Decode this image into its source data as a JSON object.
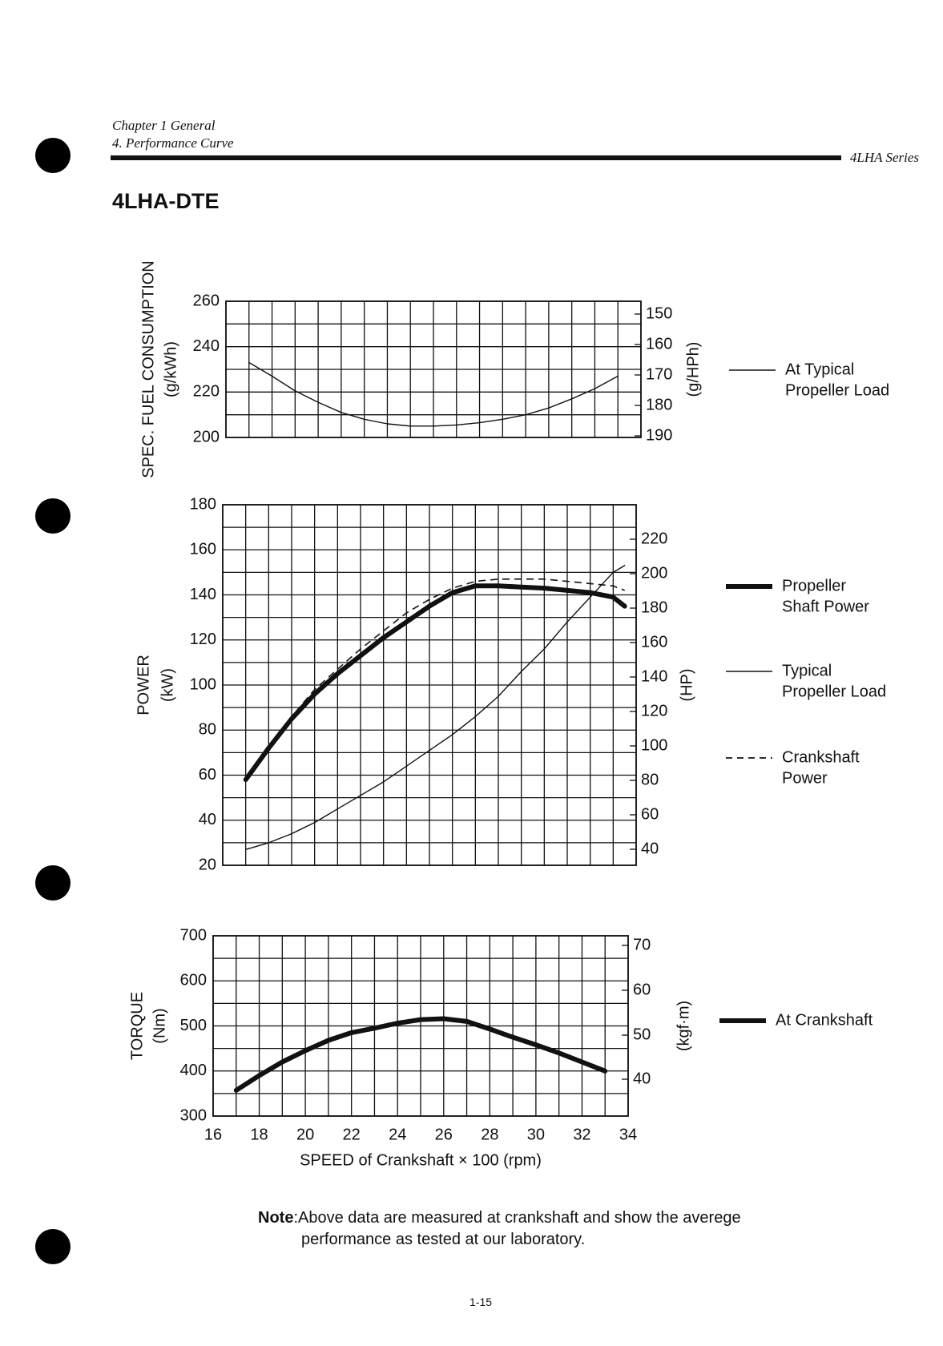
{
  "header": {
    "chapter": "Chapter 1 General",
    "section": "4. Performance Curve",
    "series": "4LHA Series"
  },
  "model": "4LHA-DTE",
  "note": {
    "label": "Note",
    "line1": ":Above data are measured at crankshaft and show the averege",
    "line2": "performance as tested at our laboratory."
  },
  "page_number": "1-15",
  "chart_data": [
    {
      "type": "line",
      "ylabel": "SPEC. FUEL CONSUMPTION",
      "ylabel_unit": "(g/kWh)",
      "y2label": "(g/HPh)",
      "ylim": [
        200,
        260
      ],
      "yticks": [
        "200",
        "220",
        "240",
        "260"
      ],
      "y2ticks": [
        "150",
        "160",
        "170",
        "180",
        "190"
      ],
      "xlim": [
        16,
        34
      ],
      "grid": true,
      "legend": "right",
      "series": [
        {
          "name": "At Typical Propeller Load",
          "x": [
            17.0,
            18.0,
            19.0,
            20.0,
            21.0,
            22.0,
            23.0,
            24.0,
            25.0,
            26.0,
            27.0,
            28.0,
            29.0,
            30.0,
            31.0,
            32.0,
            33.0
          ],
          "values": [
            233,
            227,
            220.5,
            215.5,
            211,
            208,
            206,
            205,
            205,
            205.5,
            206.5,
            208,
            210,
            213,
            217,
            221.5,
            227
          ]
        }
      ]
    },
    {
      "type": "line",
      "ylabel": "POWER",
      "ylabel_unit": "(kW)",
      "y2label": "(HP)",
      "ylim": [
        20,
        180
      ],
      "yticks": [
        "20",
        "40",
        "60",
        "80",
        "100",
        "120",
        "140",
        "160",
        "180"
      ],
      "y2ticks": [
        "40",
        "60",
        "80",
        "100",
        "120",
        "140",
        "160",
        "180",
        "200",
        "220"
      ],
      "xlim": [
        16,
        34
      ],
      "grid": true,
      "legend": "right",
      "series": [
        {
          "name": "Propeller Shaft Power",
          "style": "thick",
          "x": [
            17.0,
            18.0,
            19.0,
            20.0,
            21.0,
            22.0,
            23.0,
            24.0,
            25.0,
            26.0,
            27.0,
            28.0,
            29.0,
            30.0,
            31.0,
            32.0,
            33.0,
            33.5
          ],
          "values": [
            58,
            72,
            85,
            96,
            105,
            113,
            121,
            128,
            135,
            141,
            144,
            144,
            143.5,
            143,
            142,
            141,
            139,
            135
          ]
        },
        {
          "name": "Typical Propeller Load",
          "style": "thin",
          "x": [
            17.0,
            18.0,
            19.0,
            20.0,
            21.0,
            22.0,
            23.0,
            24.0,
            25.0,
            26.0,
            27.0,
            28.0,
            29.0,
            30.0,
            31.0,
            32.0,
            33.0,
            33.5
          ],
          "values": [
            27,
            30,
            34,
            39,
            45,
            51,
            57,
            64,
            71,
            78,
            86,
            95,
            106,
            116,
            128,
            139,
            150,
            153
          ]
        },
        {
          "name": "Crankshaft Power",
          "style": "dashed",
          "x": [
            17.0,
            18.0,
            19.0,
            20.0,
            21.0,
            22.0,
            23.0,
            24.0,
            25.0,
            26.0,
            27.0,
            28.0,
            29.0,
            30.0,
            31.0,
            32.0,
            33.0,
            33.5
          ],
          "values": [
            58,
            73,
            86,
            98,
            107,
            116,
            124,
            132,
            138,
            143,
            146,
            147,
            147,
            147,
            146,
            145,
            144,
            142
          ]
        }
      ]
    },
    {
      "type": "line",
      "ylabel": "TORQUE",
      "ylabel_unit": "(Nm)",
      "y2label": "(kgf·m)",
      "ylim": [
        300,
        700
      ],
      "yticks": [
        "300",
        "400",
        "500",
        "600",
        "700"
      ],
      "y2ticks": [
        "40",
        "50",
        "60",
        "70"
      ],
      "xlim": [
        16,
        34
      ],
      "xticks": [
        "16",
        "18",
        "20",
        "22",
        "24",
        "26",
        "28",
        "30",
        "32",
        "34"
      ],
      "xlabel": "SPEED of Crankshaft × 100 (rpm)",
      "grid": true,
      "legend": "right",
      "series": [
        {
          "name": "At Crankshaft",
          "style": "thick",
          "x": [
            17.0,
            18.0,
            19.0,
            20.0,
            21.0,
            22.0,
            23.0,
            24.0,
            25.0,
            26.0,
            27.0,
            28.0,
            29.0,
            30.0,
            31.0,
            32.0,
            33.0
          ],
          "values": [
            357,
            390,
            420,
            445,
            468,
            485,
            495,
            506,
            514,
            516,
            510,
            493,
            475,
            458,
            440,
            420,
            400
          ]
        }
      ]
    }
  ],
  "legends": [
    [
      "At Typical",
      "Propeller Load"
    ],
    [
      "Propeller",
      "Shaft Power"
    ],
    [
      "Typical",
      "Propeller Load"
    ],
    [
      "Crankshaft",
      "Power"
    ],
    [
      "At Crankshaft"
    ]
  ],
  "colors": {
    "ink": "#111111",
    "paper": "#ffffff"
  }
}
